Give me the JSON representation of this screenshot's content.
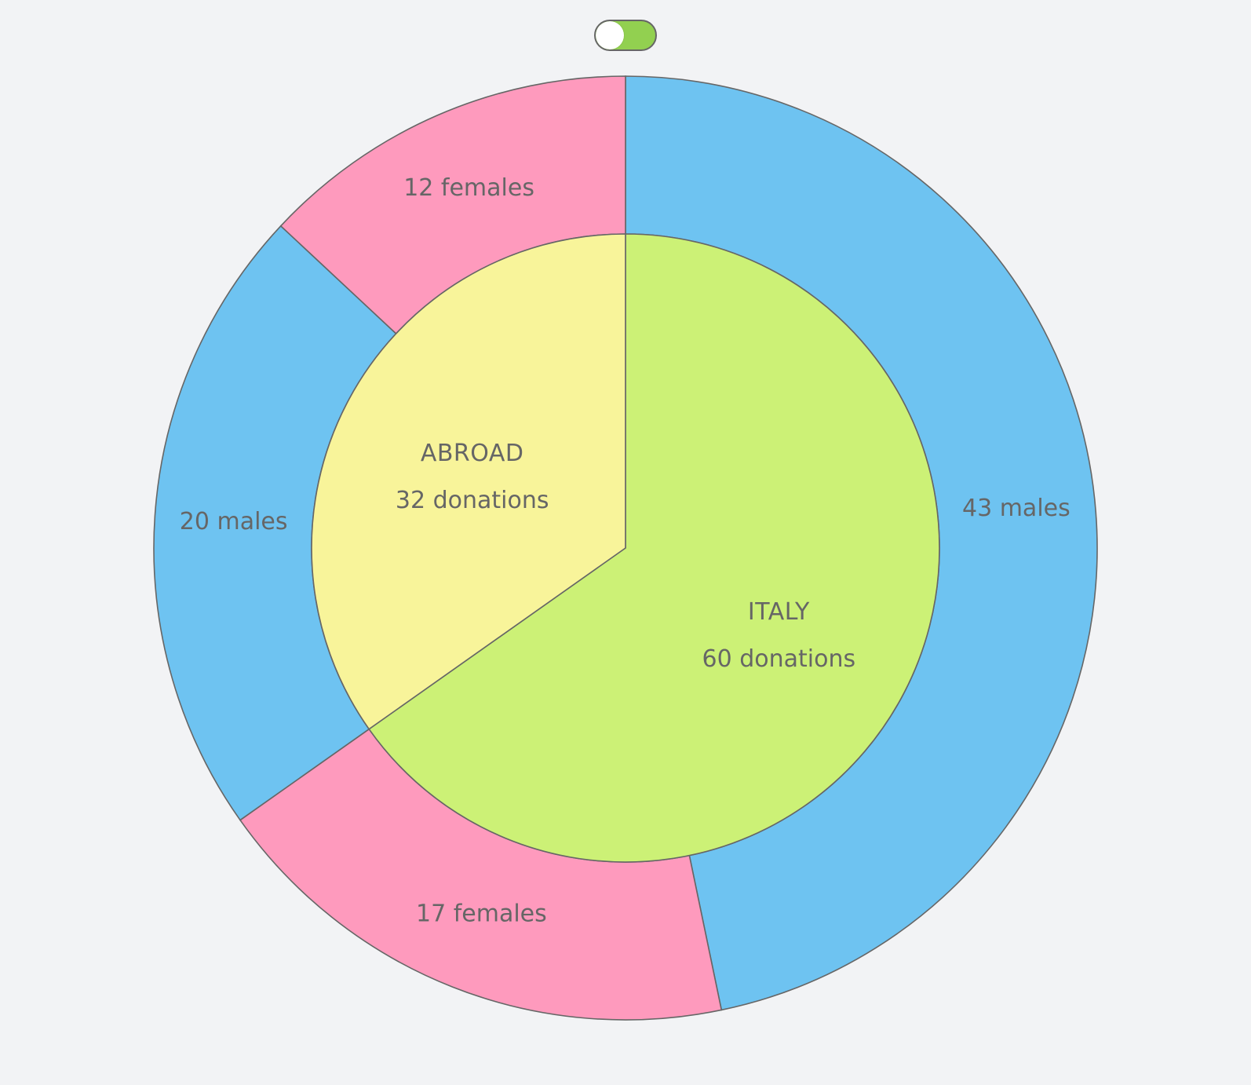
{
  "toggle": {
    "state": "on",
    "track_color": "#92d050",
    "knob_color": "#ffffff"
  },
  "colors": {
    "background": "#f2f3f5",
    "stroke": "#666666",
    "text": "#666666"
  },
  "chart_data": {
    "type": "pie",
    "title": "",
    "start_angle_deg": 0,
    "direction": "clockwise",
    "inner_ring": [
      {
        "label": "ITALY",
        "value": 60,
        "value_label": "60 donations",
        "color": "#ccf176"
      },
      {
        "label": "ABROAD",
        "value": 32,
        "value_label": "32 donations",
        "color": "#f8f49a"
      }
    ],
    "outer_ring": [
      {
        "group": "ITALY",
        "value": 43,
        "label": "43 males",
        "color": "#6ec3f1"
      },
      {
        "group": "ITALY",
        "value": 17,
        "label": "17 females",
        "color": "#fe9abd"
      },
      {
        "group": "ABROAD",
        "value": 20,
        "label": "20 males",
        "color": "#6ec3f1"
      },
      {
        "group": "ABROAD",
        "value": 12,
        "label": "12 females",
        "color": "#fe9abd"
      }
    ]
  }
}
